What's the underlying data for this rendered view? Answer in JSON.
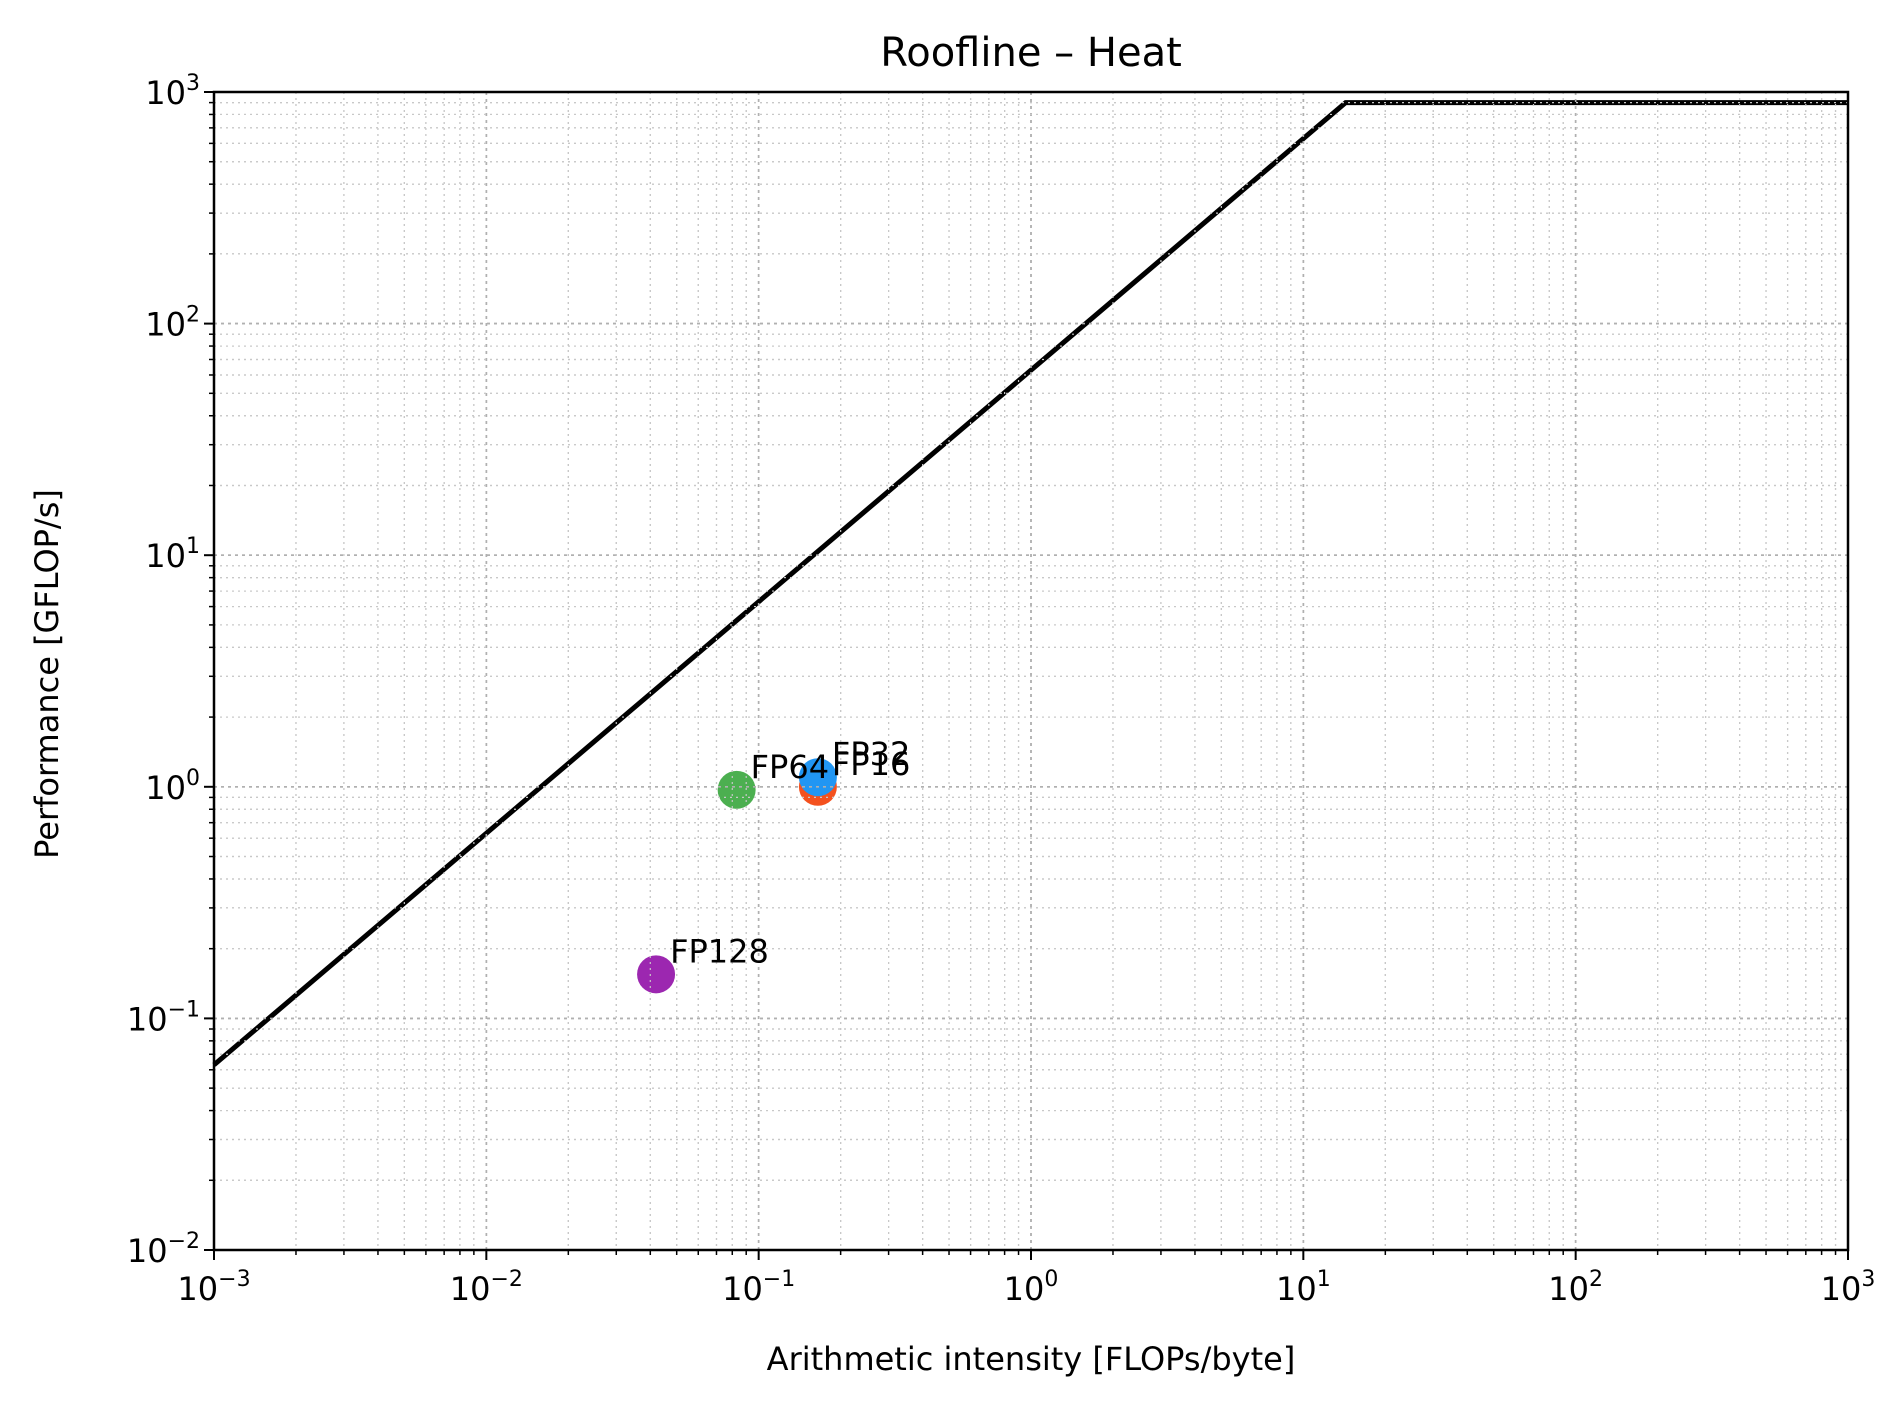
{
  "chart_data": {
    "type": "scatter",
    "title": "Roofline – Heat",
    "xlabel": "Arithmetic intensity [FLOPs/byte]",
    "ylabel": "Performance [GFLOP/s]",
    "xscale": "log",
    "yscale": "log",
    "xlim": [
      0.001,
      1000
    ],
    "ylim": [
      0.01,
      1000
    ],
    "x_ticks": [
      {
        "base": "10",
        "exp": "−3",
        "value": 0.001
      },
      {
        "base": "10",
        "exp": "−2",
        "value": 0.01
      },
      {
        "base": "10",
        "exp": "−1",
        "value": 0.1
      },
      {
        "base": "10",
        "exp": "0",
        "value": 1
      },
      {
        "base": "10",
        "exp": "1",
        "value": 10
      },
      {
        "base": "10",
        "exp": "2",
        "value": 100
      },
      {
        "base": "10",
        "exp": "3",
        "value": 1000
      }
    ],
    "y_ticks": [
      {
        "base": "10",
        "exp": "−2",
        "value": 0.01
      },
      {
        "base": "10",
        "exp": "−1",
        "value": 0.1
      },
      {
        "base": "10",
        "exp": "0",
        "value": 1
      },
      {
        "base": "10",
        "exp": "1",
        "value": 10
      },
      {
        "base": "10",
        "exp": "2",
        "value": 100
      },
      {
        "base": "10",
        "exp": "3",
        "value": 1000
      }
    ],
    "grid": "major and minor, dotted",
    "roofline": {
      "color": "#000000",
      "points": [
        [
          0.001,
          0.063
        ],
        [
          14.3,
          900
        ],
        [
          1000,
          900
        ]
      ]
    },
    "points": [
      {
        "label": "FP16",
        "x": 0.165,
        "y": 1.0,
        "color": "#f4511e"
      },
      {
        "label": "FP32",
        "x": 0.165,
        "y": 1.1,
        "color": "#2196f3"
      },
      {
        "label": "FP64",
        "x": 0.083,
        "y": 0.97,
        "color": "#4caf50"
      },
      {
        "label": "FP128",
        "x": 0.042,
        "y": 0.155,
        "color": "#9c27b0"
      }
    ]
  }
}
